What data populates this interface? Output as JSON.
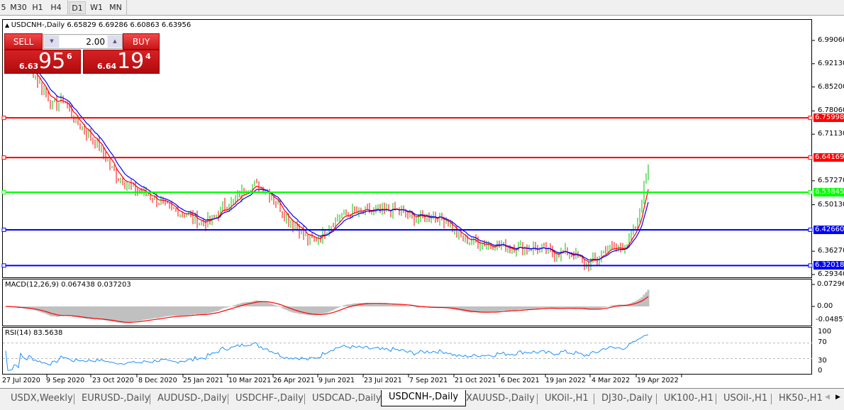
{
  "toolbar": {
    "timeframes": [
      "5",
      "M30",
      "H1",
      "H4",
      "D1",
      "W1",
      "MN"
    ],
    "active": "D1"
  },
  "chart": {
    "title": "USDCNH-,Daily 6.65829 6.69286 6.60863 6.63956",
    "symbol_arrow_icon": "triangle-up-icon"
  },
  "trade_panel": {
    "sell_label": "SELL",
    "buy_label": "BUY",
    "lot": "2.00",
    "sell_price": {
      "prefix": "6.63",
      "big": "95",
      "sup": "6"
    },
    "buy_price": {
      "prefix": "6.64",
      "big": "19",
      "sup": "4"
    }
  },
  "price_axis": [
    "6.99060",
    "6.92130",
    "6.85200",
    "6.78060",
    "6.71130",
    "6.57270",
    "6.50130",
    "6.36270",
    "6.29340"
  ],
  "hlines": [
    {
      "value": 6.75998,
      "label": "6.75998",
      "color": "#ff0000"
    },
    {
      "value": 6.64169,
      "label": "6.64169",
      "color": "#ff0000"
    },
    {
      "value": 6.53845,
      "label": "6.53845",
      "color": "#00ff00"
    },
    {
      "value": 6.4266,
      "label": "6.42660",
      "color": "#0000ff"
    },
    {
      "value": 6.32018,
      "label": "6.32018",
      "color": "#0000ff"
    }
  ],
  "macd": {
    "label": "MACD(12,26,9) 0.067438 0.037203",
    "axis": [
      "0.072963",
      "0.00",
      "-0.04857"
    ]
  },
  "rsi": {
    "label": "RSI(14) 83.5638",
    "axis": [
      "100",
      "70",
      "30",
      "0"
    ]
  },
  "dates": [
    "27 Jul 2020",
    "9 Sep 2020",
    "23 Oct 2020",
    "8 Dec 2020",
    "25 Jan 2021",
    "10 Mar 2021",
    "26 Apr 2021",
    "9 Jun 2021",
    "23 Jul 2021",
    "7 Sep 2021",
    "21 Oct 2021",
    "6 Dec 2021",
    "19 Jan 2022",
    "4 Mar 2022",
    "19 Apr 2022"
  ],
  "tabs": [
    "USDX,Weekly",
    "EURUSD-,Daily",
    "AUDUSD-,Daily",
    "USDCHF-,Daily",
    "USDCAD-,Daily",
    "USDCNH-,Daily",
    "XAUUSD-,Daily",
    "UKOil-,H1",
    "DJ30-,Daily",
    "UK100-,H1",
    "USOil-,H1",
    "HK50-,H1"
  ],
  "active_tab": "USDCNH-,Daily",
  "chart_data": {
    "type": "line",
    "title": "USDCNH-,Daily",
    "ylim": [
      6.2934,
      6.9906
    ],
    "approx_closes": [
      6.9,
      6.847,
      6.794,
      6.815,
      6.752,
      6.72,
      6.688,
      6.636,
      6.583,
      6.562,
      6.541,
      6.53,
      6.509,
      6.488,
      6.478,
      6.467,
      6.446,
      6.456,
      6.498,
      6.509,
      6.551,
      6.562,
      6.545,
      6.509,
      6.456,
      6.435,
      6.393,
      6.403,
      6.44,
      6.47,
      6.478,
      6.48,
      6.482,
      6.478,
      6.488,
      6.478,
      6.461,
      6.467,
      6.467,
      6.456,
      6.41,
      6.393,
      6.389,
      6.382,
      6.382,
      6.372,
      6.376,
      6.372,
      6.367,
      6.355,
      6.361,
      6.35,
      6.325,
      6.335,
      6.372,
      6.372,
      6.385,
      6.456,
      6.64
    ],
    "ma_colors": [
      "#ff0000",
      "#0000ff"
    ],
    "up_color": "#00c000",
    "down_color": "#ff0000"
  }
}
